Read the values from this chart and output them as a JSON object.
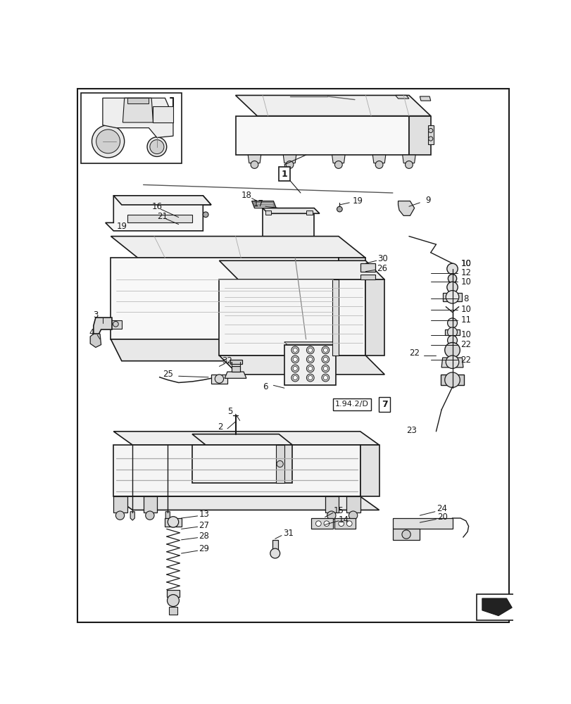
{
  "bg_color": "#ffffff",
  "line_color": "#1a1a1a",
  "fig_width": 8.12,
  "fig_height": 10.0,
  "dpi": 100
}
